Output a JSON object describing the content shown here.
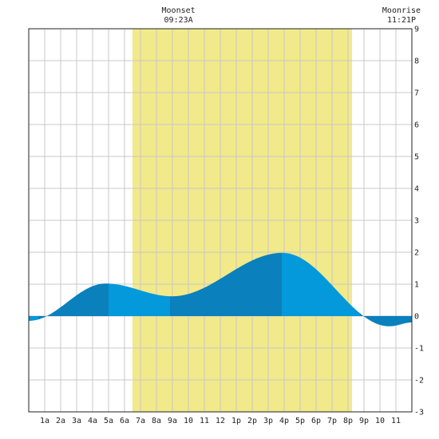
{
  "chart_data": {
    "type": "area",
    "title": "",
    "xlabel": "",
    "ylabel": "",
    "ylim": [
      -3,
      9
    ],
    "y_ticks": [
      "-3",
      "-2",
      "-1",
      "0",
      "1",
      "2",
      "3",
      "4",
      "5",
      "6",
      "7",
      "8",
      "9"
    ],
    "x_ticks": [
      "1a",
      "2a",
      "3a",
      "4a",
      "5a",
      "6a",
      "7a",
      "8a",
      "9a",
      "10",
      "11",
      "12",
      "1p",
      "2p",
      "3p",
      "4p",
      "5p",
      "6p",
      "7p",
      "8p",
      "9p",
      "10",
      "11"
    ],
    "xlim_hours": [
      0,
      24
    ],
    "grid": true,
    "daylight_hours": [
      6.5,
      20.25
    ],
    "moon_events": [
      {
        "label": "Moonset",
        "time": "09:23A",
        "hour": 9.38
      },
      {
        "label": "Moonrise",
        "time": "11:21P",
        "hour": 23.35
      }
    ],
    "tide_extremes": [
      {
        "hour": 0.0,
        "value": -0.15
      },
      {
        "hour": 4.83,
        "value": 1.02
      },
      {
        "hour": 8.97,
        "value": 0.62
      },
      {
        "hour": 15.9,
        "value": 1.98
      },
      {
        "hour": 22.6,
        "value": -0.32
      },
      {
        "hour": 24.0,
        "value": -0.2
      }
    ],
    "band_boundaries_hours": [
      0.6,
      5.0,
      8.85,
      15.85,
      20.75
    ],
    "colors": {
      "daylight": "#f2e98a",
      "tide_dark": "#0a80bd",
      "tide_light": "#0399db",
      "grid": "#c8c8c8",
      "frame": "#222222"
    }
  }
}
